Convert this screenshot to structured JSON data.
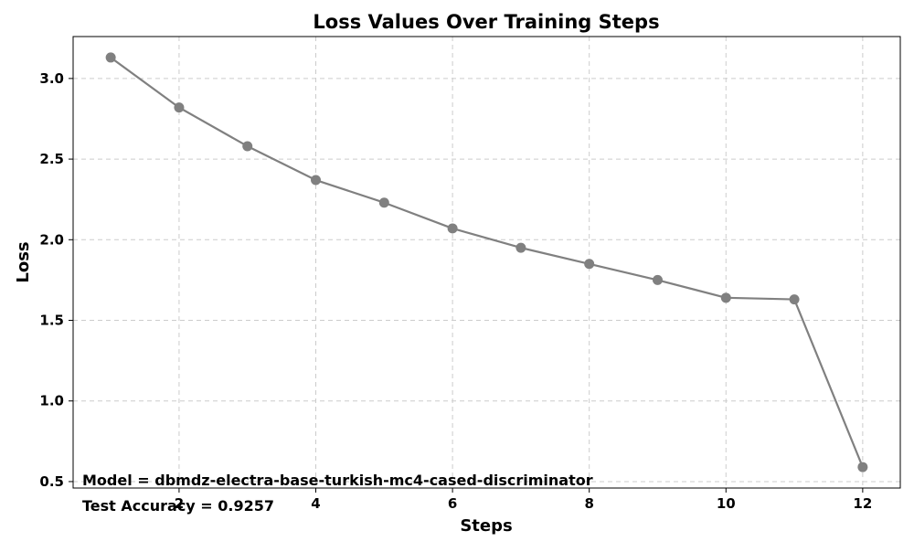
{
  "chart_data": {
    "type": "line",
    "title": "Loss Values Over Training Steps",
    "xlabel": "Steps",
    "ylabel": "Loss",
    "x": [
      1,
      2,
      3,
      4,
      5,
      6,
      7,
      8,
      9,
      10,
      11,
      12
    ],
    "series": [
      {
        "values": [
          3.13,
          2.82,
          2.58,
          2.37,
          2.23,
          2.07,
          1.95,
          1.85,
          1.75,
          1.64,
          1.63,
          0.59
        ],
        "color": "#808080",
        "marker": "circle"
      }
    ],
    "xticks": [
      2,
      4,
      6,
      8,
      10,
      12
    ],
    "yticks": [
      0.5,
      1.0,
      1.5,
      2.0,
      2.5,
      3.0
    ],
    "xtick_labels": [
      "2",
      "4",
      "6",
      "8",
      "10",
      "12"
    ],
    "ytick_labels": [
      "0.5",
      "1.0",
      "1.5",
      "2.0",
      "2.5",
      "3.0"
    ],
    "xlim": [
      0.45,
      12.55
    ],
    "ylim": [
      0.46,
      3.26
    ],
    "grid": true,
    "annotations": [
      "Model = dbmdz-electra-base-turkish-mc4-cased-discriminator",
      "Test Accuracy = 0.9257"
    ]
  }
}
